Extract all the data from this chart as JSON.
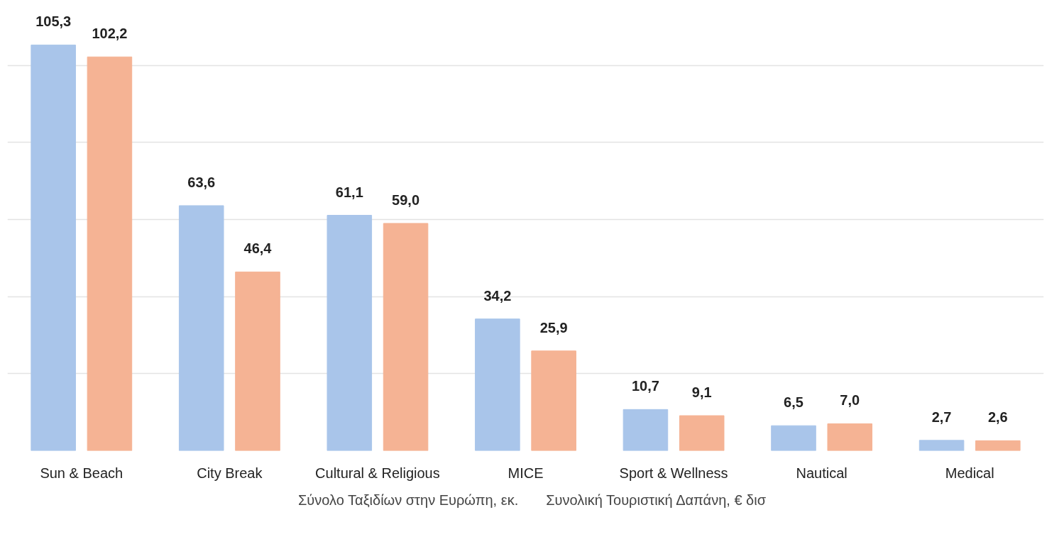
{
  "chart_data": {
    "type": "bar",
    "categories": [
      "Sun & Beach",
      "City Break",
      "Cultural & Religious",
      "MICE",
      "Sport & Wellness",
      "Nautical",
      "Medical"
    ],
    "series": [
      {
        "name": "Σύνολο Ταξιδίων στην Ευρώπη, εκ.",
        "color": "#a9c5ea",
        "values": [
          105.3,
          63.6,
          61.1,
          34.2,
          10.7,
          6.5,
          2.7
        ],
        "value_labels": [
          "105,3",
          "63,6",
          "61,1",
          "34,2",
          "10,7",
          "6,5",
          "2,7"
        ]
      },
      {
        "name": "Συνολική Τουριστική Δαπάνη, € δισ",
        "color": "#f5b394",
        "values": [
          102.2,
          46.4,
          59.0,
          25.9,
          9.1,
          7.0,
          2.6
        ],
        "value_labels": [
          "102,2",
          "46,4",
          "59,0",
          "25,9",
          "9,1",
          "7,0",
          "2,6"
        ]
      }
    ],
    "grid": "y",
    "legend": "bottom",
    "tick_labels": "x"
  }
}
